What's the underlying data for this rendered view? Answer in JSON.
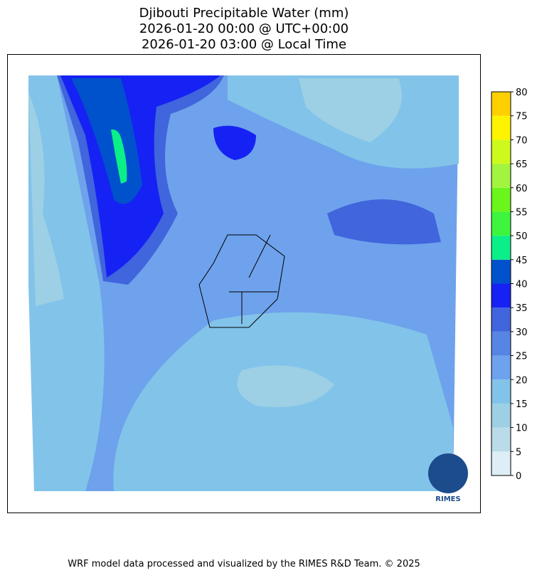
{
  "title": [
    "Djibouti Precipitable Water (mm)",
    "2026-01-20 00:00 @ UTC+00:00",
    "2026-01-20 03:00 @ Local Time"
  ],
  "colorbar": {
    "ticks": [
      0,
      5,
      10,
      15,
      20,
      25,
      30,
      35,
      40,
      45,
      50,
      55,
      60,
      65,
      70,
      75,
      80
    ],
    "colors": [
      "#ddeef6",
      "#b9dce8",
      "#9dd0e4",
      "#82c3ea",
      "#6ea2ec",
      "#5785e4",
      "#4065dc",
      "#1622f4",
      "#0052cc",
      "#0aef88",
      "#3ef53e",
      "#6cf51c",
      "#a2f43e",
      "#cef91c",
      "#fff400",
      "#ffd000"
    ]
  },
  "logo": "RIMES",
  "footer": "WRF model data processed and visualized by the RIMES R&D Team. © 2025"
}
